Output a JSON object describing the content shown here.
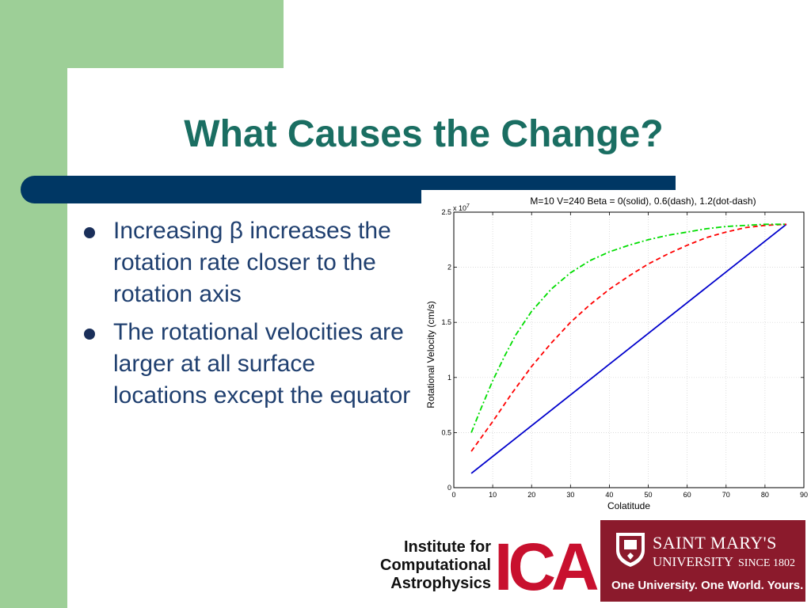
{
  "slide": {
    "title": "What Causes the Change?",
    "bullets": [
      "Increasing β increases the rotation rate closer to the rotation axis",
      "The rotational velocities are larger at all surface locations except the equator"
    ]
  },
  "logos": {
    "ica_text_lines": [
      "Institute for",
      "Computational",
      "Astrophysics"
    ],
    "ica_letters": "ICA",
    "smu_name": "SAINT MARY'S",
    "smu_university": "UNIVERSITY",
    "smu_since": "SINCE 1802",
    "smu_tagline": "One University. One World. Yours."
  },
  "colors": {
    "title": "#1a6e62",
    "bar": "#003764",
    "green": "#9dcf97",
    "solid_series": "#0000cc",
    "dash_series": "#ff0000",
    "dotdash_series": "#00dd00",
    "smu": "#8b1a2c",
    "ica_red": "#c8102e"
  },
  "chart_data": {
    "type": "line",
    "title": "M=10  V=240  Beta = 0(solid), 0.6(dash), 1.2(dot-dash)",
    "xlabel": "Colatitude",
    "ylabel": "Rotational Velocity (cm/s)",
    "y_multiplier_label": "x 10",
    "y_multiplier_exp": "7",
    "xlim": [
      0,
      90
    ],
    "ylim": [
      0,
      2.5
    ],
    "xticks": [
      0,
      10,
      20,
      30,
      40,
      50,
      60,
      70,
      80,
      90
    ],
    "yticks": [
      0,
      0.5,
      1,
      1.5,
      2,
      2.5
    ],
    "ytick_labels": [
      "0",
      "0.5",
      "1",
      "1.5",
      "2",
      "2.5"
    ],
    "grid": true,
    "series": [
      {
        "style": "solid",
        "color": "#0000cc",
        "x": [
          4.5,
          85.5
        ],
        "y": [
          0.13,
          2.39
        ]
      },
      {
        "style": "dash",
        "color": "#ff0000",
        "x": [
          4.5,
          10,
          15,
          20,
          25,
          30,
          35,
          40,
          45,
          50,
          55,
          60,
          65,
          70,
          75,
          80,
          85.5
        ],
        "y": [
          0.33,
          0.6,
          0.86,
          1.1,
          1.31,
          1.5,
          1.66,
          1.8,
          1.92,
          2.03,
          2.12,
          2.2,
          2.27,
          2.32,
          2.36,
          2.38,
          2.39
        ]
      },
      {
        "style": "dot-dash",
        "color": "#00dd00",
        "x": [
          4.5,
          7,
          10,
          13,
          16,
          20,
          25,
          30,
          35,
          40,
          45,
          50,
          55,
          60,
          65,
          70,
          75,
          80,
          85.5
        ],
        "y": [
          0.5,
          0.72,
          0.97,
          1.19,
          1.39,
          1.6,
          1.8,
          1.95,
          2.06,
          2.14,
          2.2,
          2.25,
          2.29,
          2.32,
          2.35,
          2.37,
          2.38,
          2.39,
          2.39
        ]
      }
    ]
  }
}
